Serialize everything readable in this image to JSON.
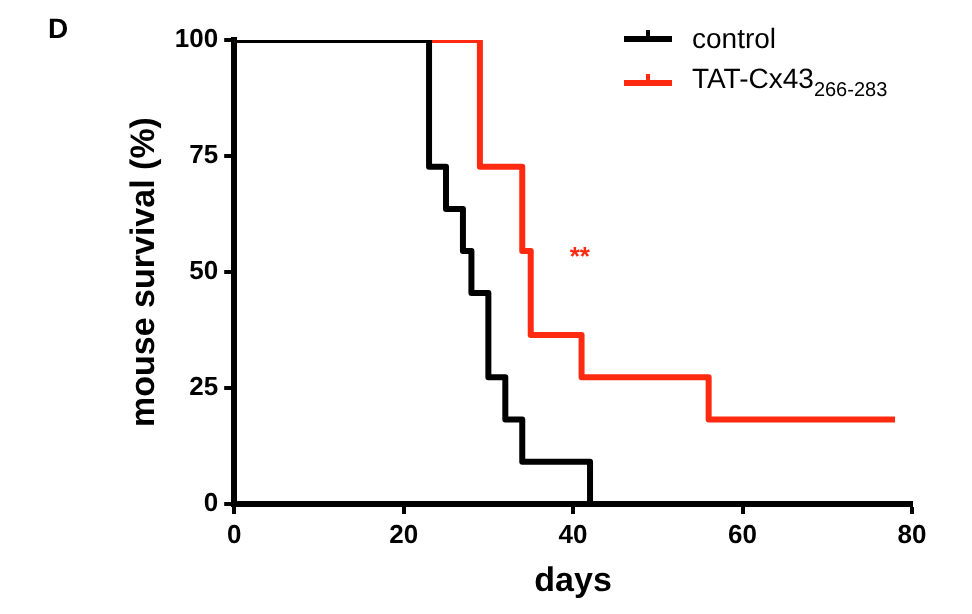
{
  "chart_data": {
    "type": "step",
    "title": "D",
    "xlabel": "days",
    "ylabel": "mouse survival (%)",
    "series": [
      {
        "name": "control",
        "color": "#000000",
        "x": [
          0,
          23,
          25,
          27,
          28,
          30,
          32,
          34,
          42
        ],
        "values": [
          100,
          72.7,
          63.6,
          54.5,
          45.5,
          27.3,
          18.2,
          9.1,
          0
        ]
      },
      {
        "name": "TAT-Cx43$_{266-283}$",
        "color": "#ff2a10",
        "x": [
          0,
          29,
          34,
          35,
          41,
          56,
          78
        ],
        "values": [
          100,
          72.7,
          54.5,
          36.4,
          27.3,
          18.2,
          18.2
        ]
      }
    ],
    "annotations": [
      "**"
    ],
    "xlim": [
      0,
      80
    ],
    "xticks": [
      0,
      20,
      40,
      60,
      80
    ],
    "ylim": [
      0,
      100
    ],
    "yticks": [
      0,
      25,
      50,
      75,
      100
    ],
    "grid": false,
    "legend": "top right",
    "marker": "none",
    "line_style": "solid"
  }
}
